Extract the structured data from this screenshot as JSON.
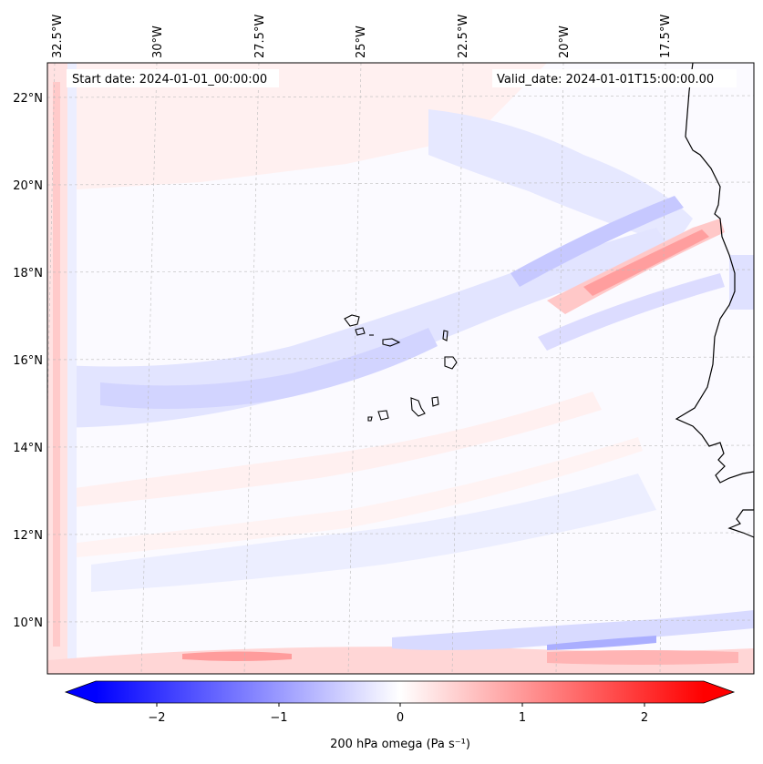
{
  "map": {
    "start_label": "Start date: 2024-01-01_00:00:00",
    "valid_label": "Valid_date: 2024-01-01T15:00:00.00",
    "lon_labels": [
      "32.5°W",
      "30°W",
      "27.5°W",
      "25°W",
      "22.5°W",
      "20°W",
      "17.5°W"
    ],
    "lat_labels": [
      "22°N",
      "20°N",
      "18°N",
      "16°N",
      "14°N",
      "12°N",
      "10°N"
    ]
  },
  "colorbar": {
    "ticks": [
      "−2",
      "−1",
      "0",
      "1",
      "2"
    ],
    "label": "200 hPa omega (Pa s⁻¹)",
    "min": -2.6,
    "max": 2.6
  },
  "colors": {
    "neg": "#0000ff",
    "pos": "#ff0000",
    "mid": "#ffffff",
    "coast": "#000000"
  }
}
